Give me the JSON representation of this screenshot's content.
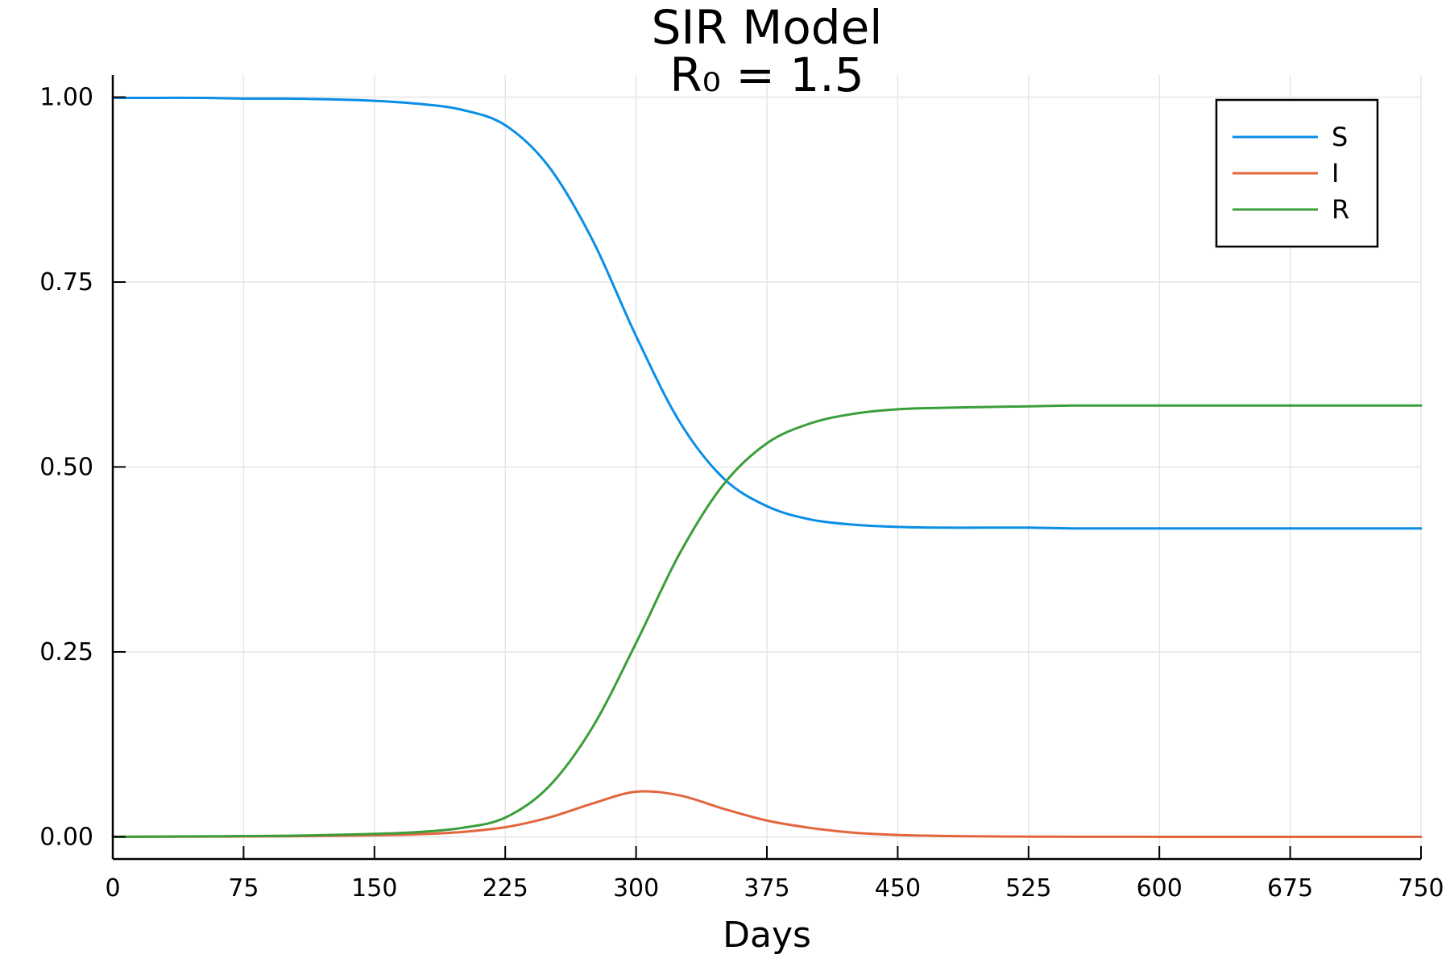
{
  "chart_data": {
    "type": "line",
    "title": "SIR Model",
    "subtitle": "R₀ = 1.5",
    "xlabel": "Days",
    "ylabel": "",
    "xlim": [
      0,
      750
    ],
    "ylim": [
      -0.03,
      1.03
    ],
    "x_ticks": [
      "0",
      "75",
      "150",
      "225",
      "300",
      "375",
      "450",
      "525",
      "600",
      "675",
      "750"
    ],
    "y_ticks": [
      "0.00",
      "0.25",
      "0.50",
      "0.75",
      "1.00"
    ],
    "grid": true,
    "legend_position": "top-right",
    "x": [
      0,
      25,
      50,
      75,
      100,
      125,
      150,
      175,
      200,
      225,
      250,
      275,
      300,
      325,
      350,
      375,
      400,
      425,
      450,
      475,
      500,
      525,
      550,
      575,
      600,
      625,
      650,
      675,
      700,
      725,
      750
    ],
    "series": [
      {
        "name": "S",
        "color": "#0a8ee6",
        "values": [
          0.999,
          0.999,
          0.999,
          0.998,
          0.998,
          0.997,
          0.995,
          0.991,
          0.983,
          0.962,
          0.906,
          0.807,
          0.677,
          0.561,
          0.485,
          0.447,
          0.429,
          0.422,
          0.419,
          0.418,
          0.418,
          0.418,
          0.417,
          0.417,
          0.417,
          0.417,
          0.417,
          0.417,
          0.417,
          0.417,
          0.417
        ]
      },
      {
        "name": "I",
        "color": "#e2653e",
        "values": [
          0.0001,
          0.0002,
          0.0003,
          0.0005,
          0.0008,
          0.0013,
          0.0021,
          0.0035,
          0.0065,
          0.013,
          0.026,
          0.045,
          0.061,
          0.056,
          0.038,
          0.022,
          0.012,
          0.0055,
          0.0025,
          0.0012,
          0.0006,
          0.0003,
          0.0001,
          0.0001,
          0,
          0,
          0,
          0,
          0,
          0,
          0
        ]
      },
      {
        "name": "R",
        "color": "#3a9e3a",
        "values": [
          0,
          0.0003,
          0.0006,
          0.001,
          0.0015,
          0.0025,
          0.004,
          0.0065,
          0.012,
          0.026,
          0.068,
          0.148,
          0.262,
          0.383,
          0.476,
          0.532,
          0.559,
          0.572,
          0.578,
          0.58,
          0.581,
          0.582,
          0.583,
          0.583,
          0.583,
          0.583,
          0.583,
          0.583,
          0.583,
          0.583,
          0.583
        ]
      }
    ]
  }
}
